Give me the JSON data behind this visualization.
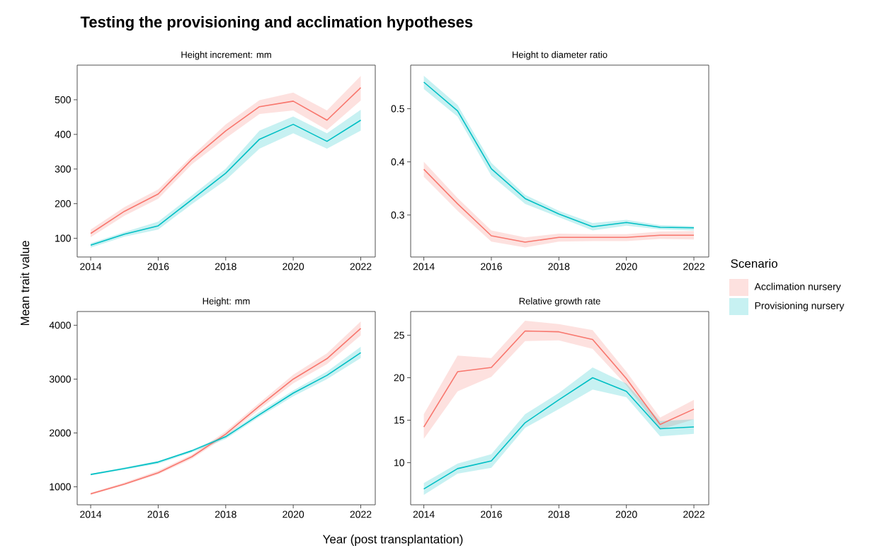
{
  "chart_data": [
    {
      "type": "line",
      "title": "Height increment: mm",
      "ylabel": "Mean trait value",
      "annotations": [
        "Testing the provisioning and acclimation hypotheses"
      ],
      "x": [
        2014,
        2015,
        2016,
        2017,
        2018,
        2019,
        2020,
        2021,
        2022
      ],
      "xlim": [
        2013.6,
        2022.43
      ],
      "ylim": [
        46,
        600
      ],
      "xticks": [
        2014,
        2016,
        2018,
        2020,
        2022
      ],
      "yticks": [
        100,
        200,
        300,
        400,
        500
      ],
      "series": [
        {
          "color": "#f8766d",
          "values": [
            114,
            178,
            228,
            328,
            410,
            480,
            496,
            441,
            535
          ],
          "lower": [
            103,
            165,
            214,
            314,
            389,
            459,
            469,
            413,
            498
          ],
          "upper": [
            125,
            190,
            241,
            338,
            429,
            499,
            521,
            469,
            569
          ]
        },
        {
          "color": "#00bfc4",
          "values": [
            80,
            112,
            136,
            212,
            288,
            386,
            429,
            380,
            441
          ],
          "lower": [
            73,
            105,
            125,
            199,
            268,
            359,
            403,
            359,
            411
          ],
          "upper": [
            86,
            118,
            148,
            224,
            301,
            411,
            452,
            403,
            471
          ]
        }
      ]
    },
    {
      "type": "line",
      "title": "Height to diameter ratio",
      "legend": "right",
      "legend_title": "Scenario",
      "x": [
        2014,
        2015,
        2016,
        2017,
        2018,
        2019,
        2020,
        2021,
        2022
      ],
      "xlim": [
        2013.61,
        2022.44
      ],
      "ylim": [
        0.221,
        0.582
      ],
      "xticks": [
        2014,
        2016,
        2018,
        2020,
        2022
      ],
      "yticks": [
        0.3,
        0.4,
        0.5
      ],
      "series": [
        {
          "name": "Acclimation nursery",
          "color": "#f8766d",
          "values": [
            0.386,
            0.321,
            0.261,
            0.249,
            0.258,
            0.258,
            0.258,
            0.262,
            0.262
          ],
          "lower": [
            0.372,
            0.308,
            0.25,
            0.239,
            0.25,
            0.251,
            0.251,
            0.255,
            0.254
          ],
          "upper": [
            0.4,
            0.332,
            0.271,
            0.258,
            0.265,
            0.264,
            0.264,
            0.269,
            0.27
          ]
        },
        {
          "name": "Provisioning nursery",
          "color": "#00bfc4",
          "values": [
            0.55,
            0.496,
            0.387,
            0.331,
            0.302,
            0.278,
            0.286,
            0.277,
            0.276
          ],
          "lower": [
            0.537,
            0.485,
            0.374,
            0.321,
            0.296,
            0.271,
            0.28,
            0.273,
            0.271
          ],
          "upper": [
            0.562,
            0.507,
            0.398,
            0.338,
            0.308,
            0.285,
            0.291,
            0.281,
            0.279
          ]
        }
      ]
    },
    {
      "type": "line",
      "title": "Height: mm",
      "xlabel": "Year (post transplantation)",
      "x": [
        2014,
        2015,
        2016,
        2017,
        2018,
        2019,
        2020,
        2021,
        2022
      ],
      "xlim": [
        2013.6,
        2022.43
      ],
      "ylim": [
        666,
        4255
      ],
      "xticks": [
        2014,
        2016,
        2018,
        2020,
        2022
      ],
      "yticks": [
        1000,
        2000,
        3000,
        4000
      ],
      "series": [
        {
          "color": "#f8766d",
          "values": [
            870,
            1050,
            1260,
            1560,
            1980,
            2500,
            3000,
            3380,
            3940
          ],
          "lower": [
            850,
            1030,
            1230,
            1520,
            1930,
            2440,
            2920,
            3280,
            3810
          ],
          "upper": [
            890,
            1080,
            1300,
            1600,
            2030,
            2560,
            3080,
            3480,
            4070
          ]
        },
        {
          "color": "#00bfc4",
          "values": [
            1230,
            1340,
            1460,
            1670,
            1930,
            2340,
            2740,
            3070,
            3490
          ],
          "lower": [
            1210,
            1320,
            1430,
            1640,
            1890,
            2300,
            2680,
            3000,
            3390
          ],
          "upper": [
            1240,
            1360,
            1480,
            1690,
            1960,
            2390,
            2790,
            3140,
            3600
          ]
        }
      ]
    },
    {
      "type": "line",
      "title": "Relative growth rate",
      "x": [
        2014,
        2015,
        2016,
        2017,
        2018,
        2019,
        2020,
        2021,
        2022
      ],
      "xlim": [
        2013.61,
        2022.44
      ],
      "ylim": [
        5.04,
        27.79
      ],
      "xticks": [
        2014,
        2016,
        2018,
        2020,
        2022
      ],
      "yticks": [
        10,
        15,
        20,
        25
      ],
      "series": [
        {
          "color": "#f8766d",
          "values": [
            14.2,
            20.7,
            21.2,
            25.5,
            25.4,
            24.5,
            19.9,
            14.5,
            16.3
          ],
          "lower": [
            12.8,
            18.4,
            20.1,
            24.3,
            24.4,
            23.4,
            19.1,
            13.9,
            15.1
          ],
          "upper": [
            15.7,
            22.6,
            22.3,
            26.7,
            26.3,
            25.6,
            20.7,
            15.3,
            17.4
          ]
        },
        {
          "color": "#00bfc4",
          "values": [
            6.9,
            9.3,
            10.2,
            14.7,
            17.4,
            20.0,
            18.4,
            14.0,
            14.2
          ],
          "lower": [
            6.2,
            8.7,
            9.4,
            14.1,
            16.3,
            18.6,
            17.7,
            13.1,
            13.4
          ],
          "upper": [
            7.6,
            9.9,
            11.0,
            15.7,
            18.2,
            21.2,
            19.3,
            14.9,
            15.1
          ]
        }
      ]
    }
  ]
}
